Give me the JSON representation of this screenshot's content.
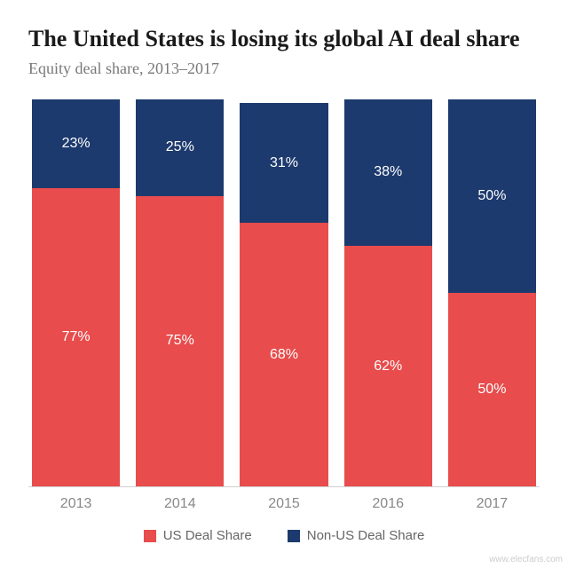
{
  "title": "The United States is losing its global AI deal share",
  "subtitle": "Equity deal share, 2013–2017",
  "chart": {
    "type": "stacked-bar",
    "categories": [
      "2013",
      "2014",
      "2015",
      "2016",
      "2017"
    ],
    "series": [
      {
        "name": "US Deal Share",
        "color": "#e84c4c",
        "values": [
          77,
          75,
          68,
          62,
          50
        ]
      },
      {
        "name": "Non-US Deal Share",
        "color": "#1d3a6e",
        "values": [
          23,
          25,
          31,
          38,
          50
        ]
      }
    ],
    "bar_heights_pct": [
      100,
      99,
      98,
      100,
      100
    ],
    "value_label_fontsize": 16,
    "value_label_color": "#ffffff",
    "axis_label_color": "#888888",
    "axis_label_fontsize": 16,
    "grid_color": "#d0d0d0",
    "background_color": "#ffffff"
  },
  "legend": {
    "items": [
      {
        "label": "US Deal Share",
        "color": "#e84c4c"
      },
      {
        "label": "Non-US Deal Share",
        "color": "#1d3a6e"
      }
    ],
    "fontsize": 15,
    "text_color": "#666666"
  },
  "watermark": "www.elecfans.com",
  "title_fontsize": 26,
  "title_color": "#1a1a1a",
  "subtitle_fontsize": 18,
  "subtitle_color": "#787878"
}
